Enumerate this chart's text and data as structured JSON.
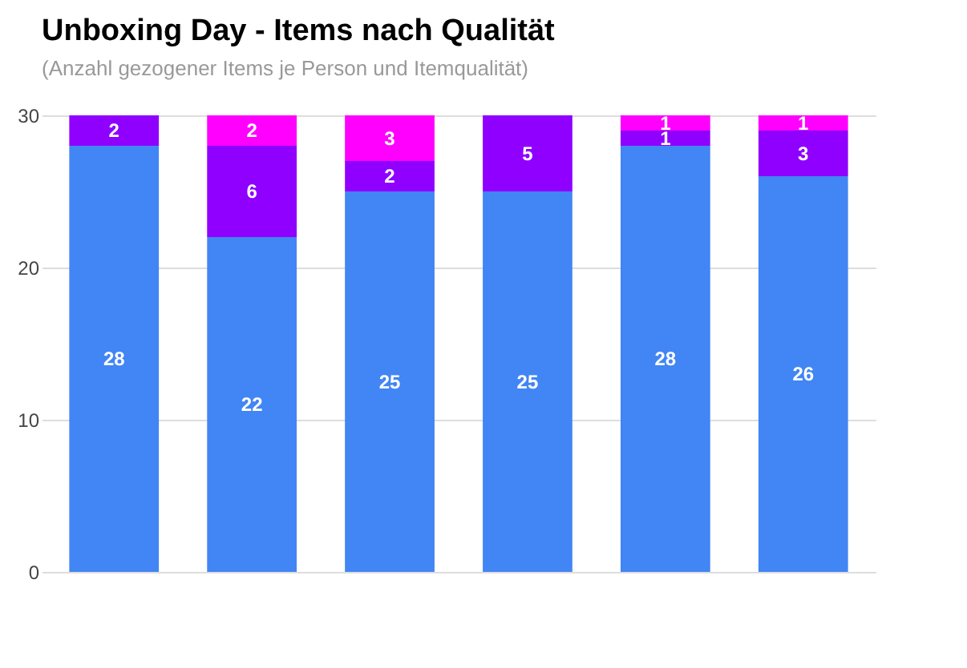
{
  "chart_data": {
    "type": "bar",
    "title": "Unboxing Day - Items nach Qualität",
    "subtitle": "(Anzahl gezogener Items je Person und Itemqualität)",
    "categories": [
      null,
      null,
      null,
      null,
      null,
      null
    ],
    "stacked": true,
    "data_labels": true,
    "grid": "y",
    "ylim": [
      0,
      30
    ],
    "yticks": [
      0,
      10,
      20,
      30
    ],
    "series": [
      {
        "color": "#4285f4",
        "values": [
          28,
          22,
          25,
          25,
          28,
          26
        ]
      },
      {
        "color": "#8f00ff",
        "values": [
          2,
          6,
          2,
          5,
          1,
          3
        ]
      },
      {
        "color": "#ff00ff",
        "values": [
          null,
          2,
          3,
          null,
          1,
          1
        ]
      }
    ]
  }
}
